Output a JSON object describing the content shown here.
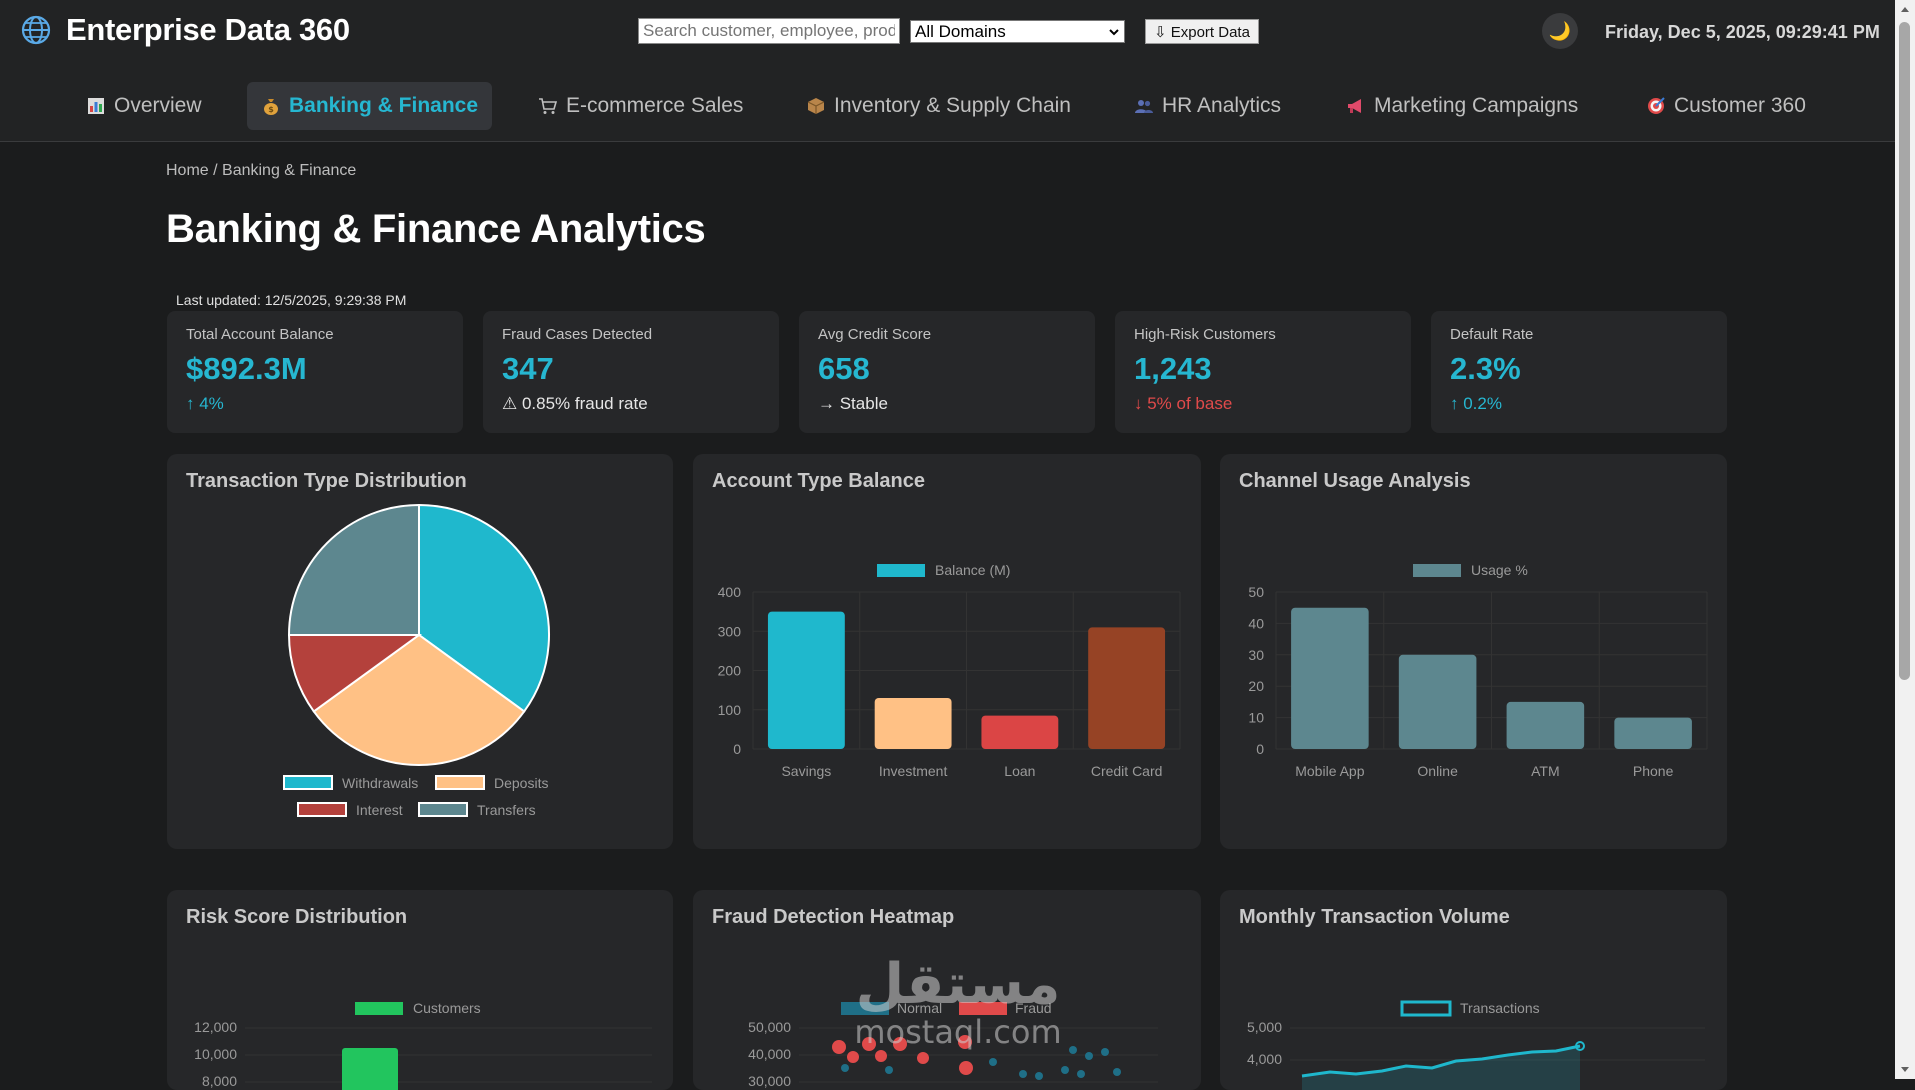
{
  "app": {
    "title": "Enterprise Data 360",
    "datetime": "Friday, Dec 5, 2025, 09:29:41 PM"
  },
  "toolbar": {
    "search_placeholder": "Search customer, employee, product...",
    "domain_selected": "All Domains",
    "export_label": "⇩ Export Data"
  },
  "nav": {
    "tabs": [
      {
        "label": "Overview",
        "icon": "chart-icon"
      },
      {
        "label": "Banking & Finance",
        "icon": "money-bag-icon",
        "active": true
      },
      {
        "label": "E-commerce Sales",
        "icon": "cart-icon"
      },
      {
        "label": "Inventory & Supply Chain",
        "icon": "package-icon"
      },
      {
        "label": "HR Analytics",
        "icon": "people-icon"
      },
      {
        "label": "Marketing Campaigns",
        "icon": "megaphone-icon"
      },
      {
        "label": "Customer 360",
        "icon": "target-icon"
      }
    ]
  },
  "page": {
    "breadcrumb": "Home / Banking & Finance",
    "title": "Banking & Finance Analytics",
    "last_updated": "Last updated: 12/5/2025, 9:29:38 PM"
  },
  "kpis": [
    {
      "label": "Total Account Balance",
      "value": "$892.3M",
      "sub": "↑ 4%",
      "tone": "good"
    },
    {
      "label": "Fraud Cases Detected",
      "value": "347",
      "sub": "⚠ 0.85% fraud rate",
      "tone": "neutral"
    },
    {
      "label": "Avg Credit Score",
      "value": "658",
      "sub": "→ Stable",
      "tone": "neutral"
    },
    {
      "label": "High-Risk Customers",
      "value": "1,243",
      "sub": "↓ 5% of base",
      "tone": "bad"
    },
    {
      "label": "Default Rate",
      "value": "2.3%",
      "sub": "↑ 0.2%",
      "tone": "good"
    }
  ],
  "colors": {
    "accent": "#26b7d1",
    "withdrawals": "#1fb8cd",
    "deposits": "#ffc185",
    "interest": "#b4413c",
    "transfers": "#5d878f",
    "credit_card": "#944454",
    "loan": "#db4545",
    "risk_green": "#22c55e"
  },
  "charts": {
    "transaction_type": {
      "title": "Transaction Type Distribution"
    },
    "account_balance": {
      "title": "Account Type Balance"
    },
    "channel_usage": {
      "title": "Channel Usage Analysis"
    },
    "risk_score": {
      "title": "Risk Score Distribution"
    },
    "fraud_heatmap": {
      "title": "Fraud Detection Heatmap"
    },
    "monthly_volume": {
      "title": "Monthly Transaction Volume"
    }
  },
  "chart_data": [
    {
      "id": "transaction_type",
      "type": "pie",
      "title": "Transaction Type Distribution",
      "categories": [
        "Withdrawals",
        "Deposits",
        "Interest",
        "Transfers"
      ],
      "values": [
        35,
        30,
        10,
        25
      ],
      "legend": "bottom"
    },
    {
      "id": "account_balance",
      "type": "bar",
      "title": "Account Type Balance",
      "categories": [
        "Savings",
        "Investment",
        "Loan",
        "Credit Card"
      ],
      "series": [
        {
          "name": "Balance (M)",
          "values": [
            350,
            130,
            85,
            310
          ]
        }
      ],
      "colors": [
        "#1fb8cd",
        "#ffc185",
        "#db4545",
        "#964325"
      ],
      "ylim": [
        0,
        400
      ],
      "yticks": [
        0,
        100,
        200,
        300,
        400
      ],
      "grid": true,
      "legend": "top"
    },
    {
      "id": "channel_usage",
      "type": "bar",
      "title": "Channel Usage Analysis",
      "categories": [
        "Mobile App",
        "Online",
        "ATM",
        "Phone"
      ],
      "series": [
        {
          "name": "Usage %",
          "values": [
            45,
            30,
            15,
            10
          ]
        }
      ],
      "ylim": [
        0,
        50
      ],
      "yticks": [
        0,
        10,
        20,
        30,
        40,
        50
      ],
      "grid": true,
      "legend": "top"
    },
    {
      "id": "risk_score",
      "type": "bar",
      "title": "Risk Score Distribution",
      "series": [
        {
          "name": "Customers"
        }
      ],
      "yticks_visible": [
        "12,000",
        "10,000",
        "8,000"
      ],
      "legend": "top"
    },
    {
      "id": "fraud_heatmap",
      "type": "scatter",
      "title": "Fraud Detection Heatmap",
      "series": [
        {
          "name": "Normal"
        },
        {
          "name": "Fraud"
        }
      ],
      "yticks_visible": [
        "50,000",
        "40,000",
        "30,000"
      ],
      "legend": "top"
    },
    {
      "id": "monthly_volume",
      "type": "line",
      "title": "Monthly Transaction Volume",
      "series": [
        {
          "name": "Transactions"
        }
      ],
      "yticks_visible": [
        "5,000",
        "4,000"
      ],
      "legend": "top"
    }
  ]
}
